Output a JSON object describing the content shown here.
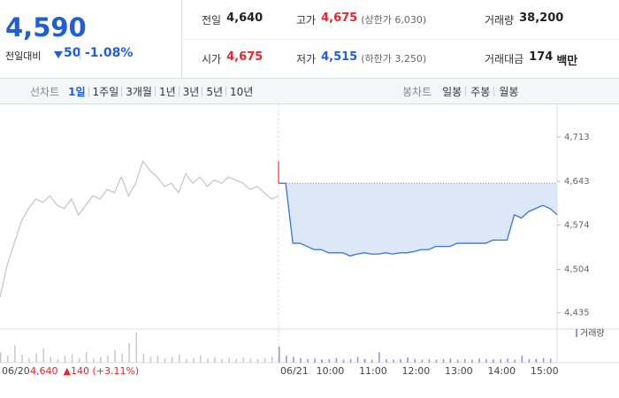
{
  "header": {
    "price": "4,590",
    "change_label": "전일대비",
    "change": "50",
    "change_rate": "-1.08%",
    "stats": [
      {
        "label": "전일",
        "value": "4,640"
      },
      {
        "label": "고가",
        "value": "4,675",
        "note": "(상한가 6,030)"
      },
      {
        "label": "거래량",
        "value": "38,200"
      },
      {
        "label": "시가",
        "value": "4,675"
      },
      {
        "label": "저가",
        "value": "4,515",
        "note": "(하한가 3,250)"
      },
      {
        "label": "거래대금",
        "value": "174",
        "unit": "백만"
      }
    ]
  },
  "tabs": {
    "line_label": "선차트",
    "line_periods": [
      "1일",
      "1주일",
      "3개월",
      "1년",
      "3년",
      "5년",
      "10년"
    ],
    "selected": 0,
    "candle_label": "봉차트",
    "candle_periods": [
      "일봉",
      "주봉",
      "월봉"
    ]
  },
  "chart_data": {
    "type": "line",
    "xlim": [
      0,
      780
    ],
    "ylim": [
      4415,
      4734
    ],
    "yticks": [
      {
        "value": 4435,
        "label": "4,435"
      },
      {
        "value": 4504,
        "label": "4,504"
      },
      {
        "value": 4574,
        "label": "4,574"
      },
      {
        "value": 4643,
        "label": "4,643"
      },
      {
        "value": 4713,
        "label": "4,713"
      }
    ],
    "xticks": [
      {
        "value": 0,
        "label": "06/20"
      },
      {
        "value": 390,
        "label": "06/21"
      },
      {
        "value": 450,
        "label": "10:00"
      },
      {
        "value": 510,
        "label": "11:00"
      },
      {
        "value": 570,
        "label": "12:00"
      },
      {
        "value": 630,
        "label": "13:00"
      },
      {
        "value": 690,
        "label": "14:00"
      },
      {
        "value": 750,
        "label": "15:00"
      }
    ],
    "baseline": 4640,
    "series": [
      {
        "color": "#c8c8c8",
        "x": [
          0,
          10,
          20,
          30,
          40,
          50,
          60,
          70,
          80,
          90,
          100,
          110,
          120,
          130,
          140,
          150,
          160,
          170,
          180,
          190,
          200,
          210,
          220,
          230,
          240,
          250,
          260,
          270,
          280,
          290,
          300,
          310,
          320,
          330,
          340,
          350,
          360,
          370,
          380,
          390
        ],
        "values": [
          4460,
          4510,
          4545,
          4580,
          4600,
          4615,
          4610,
          4620,
          4605,
          4600,
          4615,
          4590,
          4605,
          4620,
          4615,
          4630,
          4625,
          4650,
          4620,
          4640,
          4675,
          4660,
          4650,
          4635,
          4640,
          4625,
          4655,
          4640,
          4650,
          4635,
          4645,
          4640,
          4650,
          4645,
          4640,
          4630,
          4635,
          4625,
          4615,
          4620
        ]
      },
      {
        "color": "#3a74d8",
        "x": [
          390,
          400,
          410,
          420,
          430,
          440,
          450,
          460,
          470,
          480,
          490,
          500,
          510,
          520,
          530,
          540,
          550,
          560,
          570,
          580,
          590,
          600,
          610,
          620,
          630,
          640,
          650,
          660,
          670,
          680,
          690,
          700,
          710,
          720,
          730,
          740,
          750,
          760,
          770,
          780
        ],
        "values": [
          4640,
          4640,
          4545,
          4545,
          4540,
          4535,
          4535,
          4530,
          4530,
          4530,
          4525,
          4528,
          4530,
          4528,
          4528,
          4530,
          4528,
          4530,
          4530,
          4532,
          4535,
          4535,
          4540,
          4540,
          4540,
          4545,
          4545,
          4545,
          4545,
          4545,
          4550,
          4550,
          4550,
          4590,
          4585,
          4595,
          4600,
          4605,
          4600,
          4590
        ]
      },
      {
        "color": "#e8474b",
        "x": [
          390,
          390
        ],
        "values": [
          4675,
          4640
        ]
      }
    ],
    "volume": {
      "legend": "거래량",
      "color": "#c8c8c8",
      "today_color": "#9b8fd6",
      "x": [
        0,
        10,
        20,
        30,
        40,
        50,
        60,
        70,
        80,
        90,
        100,
        110,
        120,
        130,
        140,
        150,
        160,
        170,
        180,
        190,
        200,
        210,
        220,
        230,
        240,
        250,
        260,
        270,
        280,
        290,
        300,
        310,
        320,
        330,
        340,
        350,
        360,
        370,
        380,
        390,
        400,
        410,
        420,
        430,
        440,
        450,
        460,
        470,
        480,
        490,
        500,
        510,
        520,
        530,
        540,
        550,
        560,
        570,
        580,
        590,
        600,
        610,
        620,
        630,
        640,
        650,
        660,
        670,
        680,
        690,
        700,
        710,
        720,
        730,
        740,
        750,
        760,
        770
      ],
      "values": [
        900,
        600,
        1500,
        700,
        400,
        800,
        1200,
        500,
        300,
        600,
        700,
        400,
        900,
        350,
        500,
        600,
        1100,
        800,
        1700,
        2600,
        800,
        500,
        600,
        400,
        500,
        700,
        300,
        400,
        600,
        350,
        500,
        300,
        400,
        300,
        450,
        350,
        300,
        400,
        500,
        1400,
        600,
        500,
        400,
        300,
        350,
        250,
        300,
        400,
        250,
        300,
        500,
        300,
        250,
        900,
        300,
        250,
        300,
        450,
        300,
        250,
        300,
        250,
        300,
        350,
        250,
        300,
        250,
        350,
        300,
        250,
        300,
        350,
        250,
        600,
        300,
        300,
        400,
        350
      ]
    },
    "annotation": {
      "date": "06/20",
      "prev_close": "4,640",
      "change": "▲140 (+3.11%)"
    }
  }
}
